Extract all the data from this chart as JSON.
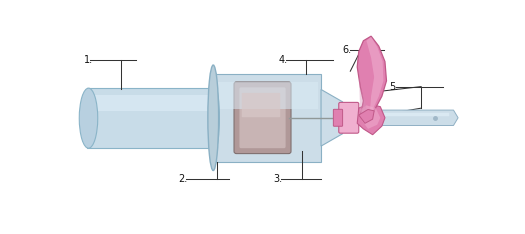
{
  "bg": "#ffffff",
  "tube_fill": "#c8dce8",
  "tube_edge": "#8ab4c8",
  "tube_hl": "#deeef8",
  "holder_fill": "#ccdde8",
  "holder_edge": "#8ab0c4",
  "stopper_fill": "#b09898",
  "stopper_inner": "#c8b4b4",
  "stopper_edge": "#807070",
  "needle_fill": "#ccdde8",
  "needle_edge": "#90b0c4",
  "pink_main": "#e080b0",
  "pink_light": "#f0b0d0",
  "pink_dark": "#c05888",
  "pink_mid": "#d890b8",
  "line_color": "#333333",
  "label_color": "#111111",
  "label_fontsize": 7.0
}
